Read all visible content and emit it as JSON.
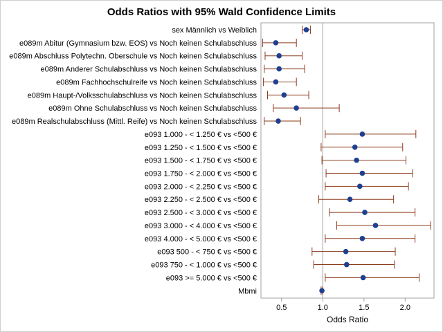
{
  "chart_data": {
    "type": "forest",
    "title": "Odds Ratios with 95% Wald Confidence Limits",
    "xlabel": "Odds Ratio",
    "xlim": [
      0.25,
      2.35
    ],
    "xticks": [
      0.5,
      1.0,
      1.5,
      2.0
    ],
    "xtick_labels": [
      "0.5",
      "1.0",
      "1.5",
      "2.0"
    ],
    "reference_line": 1.0,
    "colors": {
      "point": "#1f3f8f",
      "ci": "#8b3a1a",
      "reference": "#a0a0a0",
      "axis": "#a0a0a0"
    },
    "rows": [
      {
        "label": "sex Männlich vs Weiblich",
        "or": 0.8,
        "lower": 0.75,
        "upper": 0.85
      },
      {
        "label": "e089m Abitur (Gymnasium bzw. EOS) vs Noch keinen Schulabschluss",
        "or": 0.43,
        "lower": 0.27,
        "upper": 0.68
      },
      {
        "label": "e089m Abschluss Polytechn. Oberschule vs Noch keinen Schulabschluss",
        "or": 0.47,
        "lower": 0.3,
        "upper": 0.75
      },
      {
        "label": "e089m Anderer Schulabschluss vs Noch keinen Schulabschluss",
        "or": 0.47,
        "lower": 0.29,
        "upper": 0.78
      },
      {
        "label": "e089m Fachhochschulreife vs Noch keinen Schulabschluss",
        "or": 0.43,
        "lower": 0.28,
        "upper": 0.68
      },
      {
        "label": "e089m Haupt-/Volksschulabschluss vs Noch keinen Schulabschluss",
        "or": 0.53,
        "lower": 0.33,
        "upper": 0.83
      },
      {
        "label": "e089m Ohne Schulabschluss vs Noch keinen Schulabschluss",
        "or": 0.68,
        "lower": 0.4,
        "upper": 1.2
      },
      {
        "label": "e089m Realschulabschluss (Mittl. Reife) vs Noch keinen Schulabschluss",
        "or": 0.46,
        "lower": 0.29,
        "upper": 0.73
      },
      {
        "label": "e093 1.000 - < 1.250 € vs <500 €",
        "or": 1.48,
        "lower": 1.03,
        "upper": 2.13
      },
      {
        "label": "e093 1.250 - < 1.500 € vs <500 €",
        "or": 1.39,
        "lower": 0.98,
        "upper": 1.97
      },
      {
        "label": "e093 1.500 - < 1.750 € vs <500 €",
        "or": 1.41,
        "lower": 0.99,
        "upper": 2.01
      },
      {
        "label": "e093 1.750 - < 2.000 € vs <500 €",
        "or": 1.48,
        "lower": 1.04,
        "upper": 2.09
      },
      {
        "label": "e093 2.000 - < 2.250 € vs <500 €",
        "or": 1.45,
        "lower": 1.03,
        "upper": 2.04
      },
      {
        "label": "e093 2.250 - < 2.500 € vs <500 €",
        "or": 1.33,
        "lower": 0.95,
        "upper": 1.86
      },
      {
        "label": "e093 2.500 - < 3.000 € vs <500 €",
        "or": 1.51,
        "lower": 1.08,
        "upper": 2.12
      },
      {
        "label": "e093 3.000 - < 4.000 € vs <500 €",
        "or": 1.64,
        "lower": 1.17,
        "upper": 2.31
      },
      {
        "label": "e093 4.000 - < 5.000 € vs <500 €",
        "or": 1.48,
        "lower": 1.03,
        "upper": 2.12
      },
      {
        "label": "e093 500 - < 750 € vs <500 €",
        "or": 1.28,
        "lower": 0.87,
        "upper": 1.88
      },
      {
        "label": "e093 750 - < 1.000 € vs <500 €",
        "or": 1.29,
        "lower": 0.89,
        "upper": 1.87
      },
      {
        "label": "e093 >= 5.000 € vs <500 €",
        "or": 1.49,
        "lower": 1.03,
        "upper": 2.17
      },
      {
        "label": "Mbmi",
        "or": 0.99,
        "lower": 0.98,
        "upper": 1.0
      }
    ]
  }
}
